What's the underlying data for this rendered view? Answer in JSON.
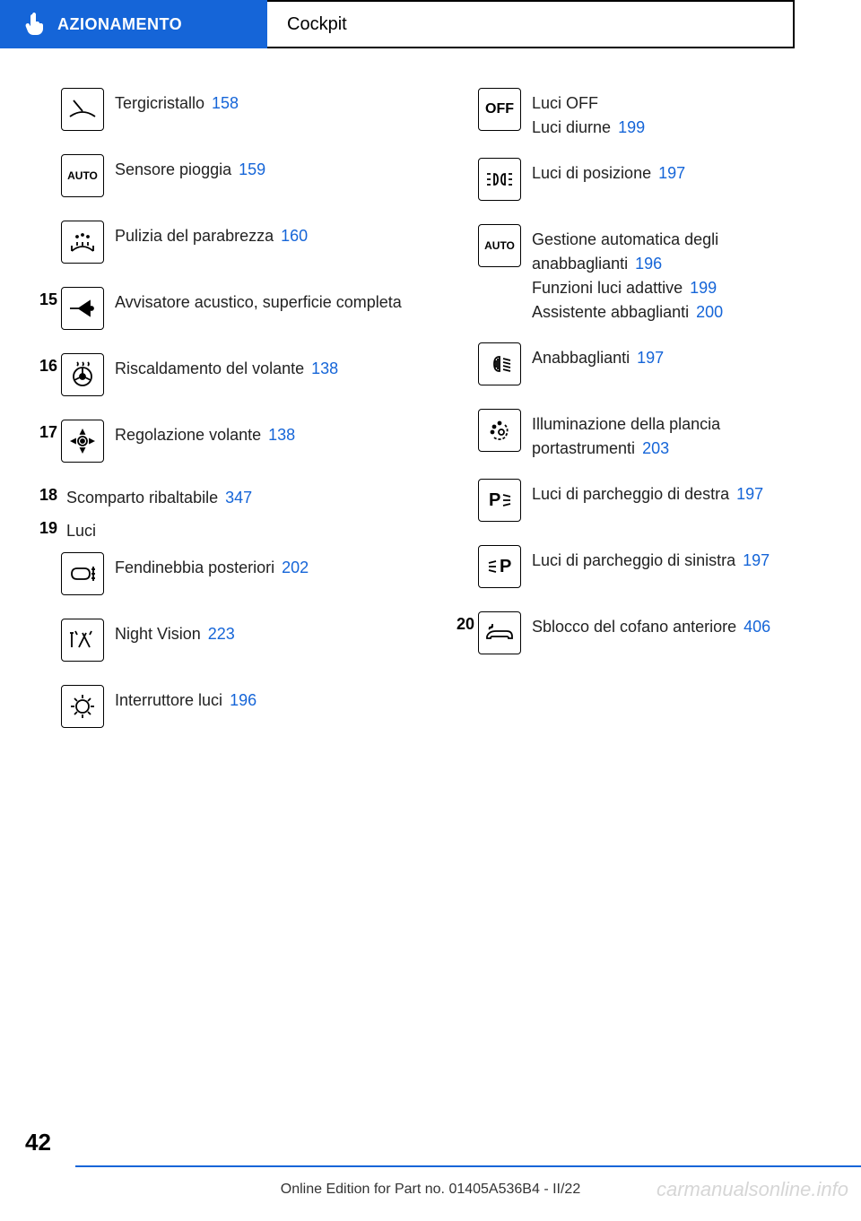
{
  "header": {
    "section": "AZIONAMENTO",
    "title": "Cockpit"
  },
  "left_column": [
    {
      "num": "",
      "icon": "wiper",
      "lines": [
        {
          "text": "Tergicristallo",
          "ref": "158"
        }
      ]
    },
    {
      "num": "",
      "icon": "auto",
      "lines": [
        {
          "text": "Sensore pioggia",
          "ref": "159"
        }
      ]
    },
    {
      "num": "",
      "icon": "washer",
      "lines": [
        {
          "text": "Pulizia del parabrezza",
          "ref": "160"
        }
      ]
    },
    {
      "num": "15",
      "icon": "horn",
      "lines": [
        {
          "text": "Avvisatore acustico, superficie completa",
          "ref": ""
        }
      ]
    },
    {
      "num": "16",
      "icon": "heated-wheel",
      "lines": [
        {
          "text": "Riscaldamento del volante",
          "ref": "138"
        }
      ]
    },
    {
      "num": "17",
      "icon": "adjust-wheel",
      "lines": [
        {
          "text": "Regolazione volante",
          "ref": "138"
        }
      ]
    }
  ],
  "left_text_rows": [
    {
      "num": "18",
      "text": "Scomparto ribaltabile",
      "ref": "347"
    },
    {
      "num": "19",
      "text": "Luci",
      "ref": ""
    }
  ],
  "left_column2": [
    {
      "num": "",
      "icon": "rear-fog",
      "lines": [
        {
          "text": "Fendinebbia posteriori",
          "ref": "202"
        }
      ]
    },
    {
      "num": "",
      "icon": "night-vision",
      "lines": [
        {
          "text": "Night Vision",
          "ref": "223"
        }
      ]
    },
    {
      "num": "",
      "icon": "light-switch",
      "lines": [
        {
          "text": "Interruttore luci",
          "ref": "196"
        }
      ]
    }
  ],
  "right_column": [
    {
      "num": "",
      "icon": "off",
      "lines": [
        {
          "text": "Luci OFF",
          "ref": ""
        },
        {
          "text": "Luci diurne",
          "ref": "199"
        }
      ]
    },
    {
      "num": "",
      "icon": "position",
      "lines": [
        {
          "text": "Luci di posizione",
          "ref": "197"
        }
      ]
    },
    {
      "num": "",
      "icon": "auto-light",
      "lines": [
        {
          "text": "Gestione automatica degli anabbaglianti",
          "ref": "196"
        },
        {
          "text": "Funzioni luci adattive",
          "ref": "199"
        },
        {
          "text": "Assistente abbaglianti",
          "ref": "200"
        }
      ]
    },
    {
      "num": "",
      "icon": "low-beam",
      "lines": [
        {
          "text": "Anabbaglianti",
          "ref": "197"
        }
      ]
    },
    {
      "num": "",
      "icon": "instrument",
      "lines": [
        {
          "text": "Illuminazione della plancia portastrumenti",
          "ref": "203"
        }
      ]
    },
    {
      "num": "",
      "icon": "park-right",
      "lines": [
        {
          "text": "Luci di parcheggio di destra",
          "ref": "197"
        }
      ]
    },
    {
      "num": "",
      "icon": "park-left",
      "lines": [
        {
          "text": "Luci di parcheggio di sinistra",
          "ref": "197"
        }
      ]
    },
    {
      "num": "20",
      "icon": "hood",
      "lines": [
        {
          "text": "Sblocco del cofano anteriore",
          "ref": "406"
        }
      ]
    }
  ],
  "page_number": "42",
  "footer": "Online Edition for Part no. 01405A536B4 - II/22",
  "watermark": "carmanualsonline.info",
  "colors": {
    "blue": "#1565d8",
    "text": "#222222"
  }
}
